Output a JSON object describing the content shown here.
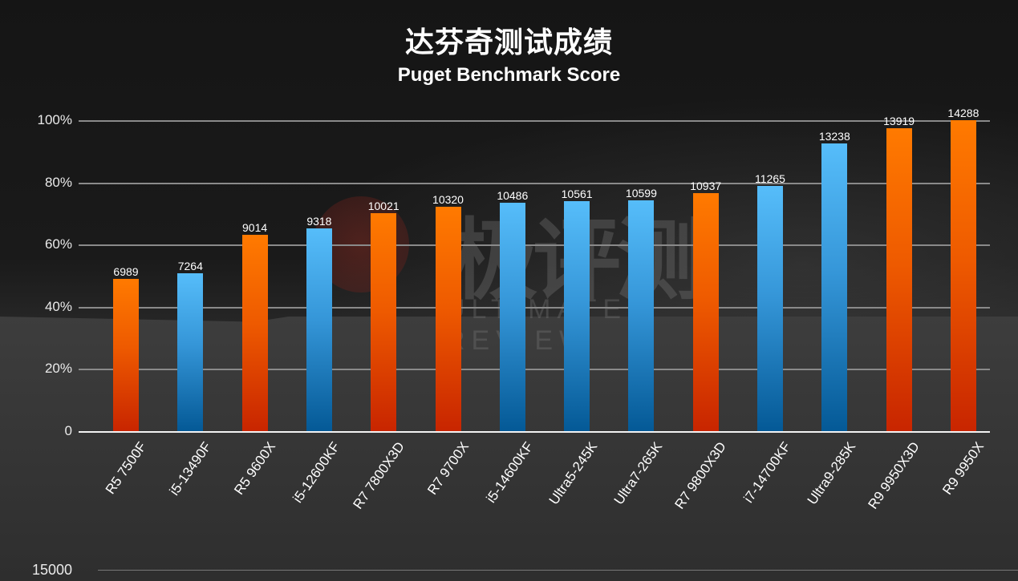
{
  "title": {
    "cn": "达芬奇测试成绩",
    "en": "Puget Benchmark Score"
  },
  "watermark": {
    "logo": "极",
    "text": "极评测",
    "sub": "ULTIMATE REVIEW"
  },
  "colors": {
    "amd_top": "#ff7a00",
    "amd_bottom": "#c82500",
    "intel_top": "#56bdfa",
    "intel_bottom": "#045996",
    "background": "#1b1b1b",
    "grid": "#8a8a8a"
  },
  "axis": {
    "yticks": [
      "0",
      "20%",
      "40%",
      "60%",
      "80%",
      "100%"
    ],
    "bottom_partial_tick": "15000"
  },
  "chart_data": {
    "type": "bar",
    "title": "达芬奇测试成绩",
    "subtitle": "Puget Benchmark Score",
    "xlabel": "",
    "ylabel": "",
    "ylim": [
      0,
      100
    ],
    "y_unit": "% of max (14288)",
    "grid": true,
    "legend": "none",
    "categories": [
      "R5 7500F",
      "i5-13490F",
      "R5 9600X",
      "i5-12600KF",
      "R7 7800X3D",
      "R7 9700X",
      "i5-14600KF",
      "Ultra5-245K",
      "Ultra7-265K",
      "R7 9800X3D",
      "i7-14700KF",
      "Ultra9-285K",
      "R9 9950X3D",
      "R9 9950X"
    ],
    "values": [
      6989,
      7264,
      9014,
      9318,
      10021,
      10320,
      10486,
      10561,
      10599,
      10937,
      11265,
      13238,
      13919,
      14288
    ],
    "vendor": [
      "amd",
      "intel",
      "amd",
      "intel",
      "amd",
      "amd",
      "intel",
      "intel",
      "intel",
      "amd",
      "intel",
      "intel",
      "amd",
      "amd"
    ],
    "value_labels": [
      "6989",
      "7264",
      "9014",
      "9318",
      "10021",
      "10320",
      "10486",
      "10561",
      "10599",
      "10937",
      "11265",
      "13238",
      "13919",
      "14288"
    ]
  }
}
